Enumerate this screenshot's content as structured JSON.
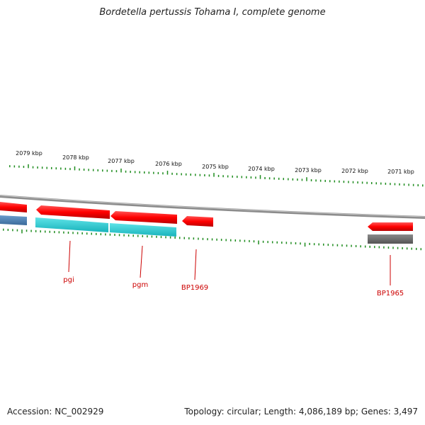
{
  "title": "Bordetella pertussis Tohama I, complete genome",
  "footer": {
    "accession": "Accession: NC_002929",
    "stats": "Topology: circular; Length: 4,086,189 bp; Genes: 3,497"
  },
  "scale": {
    "labels": [
      "2079 kbp",
      "2078 kbp",
      "2077 kbp",
      "2076 kbp",
      "2075 kbp",
      "2074 kbp",
      "2073 kbp",
      "2072 kbp",
      "2071 kbp"
    ]
  },
  "genes": [
    "pgi",
    "pgm",
    "BP1969",
    "BP1965"
  ],
  "colors": {
    "forward_gene": "#ff0000",
    "reverse_gene_teal": "#2fcfd6",
    "reverse_gene_blue": "#4a7fb5",
    "pseudo_gene_gray": "#777777",
    "backbone": "#888888",
    "tick": "#1e8c1e",
    "label": "#cc0000"
  }
}
